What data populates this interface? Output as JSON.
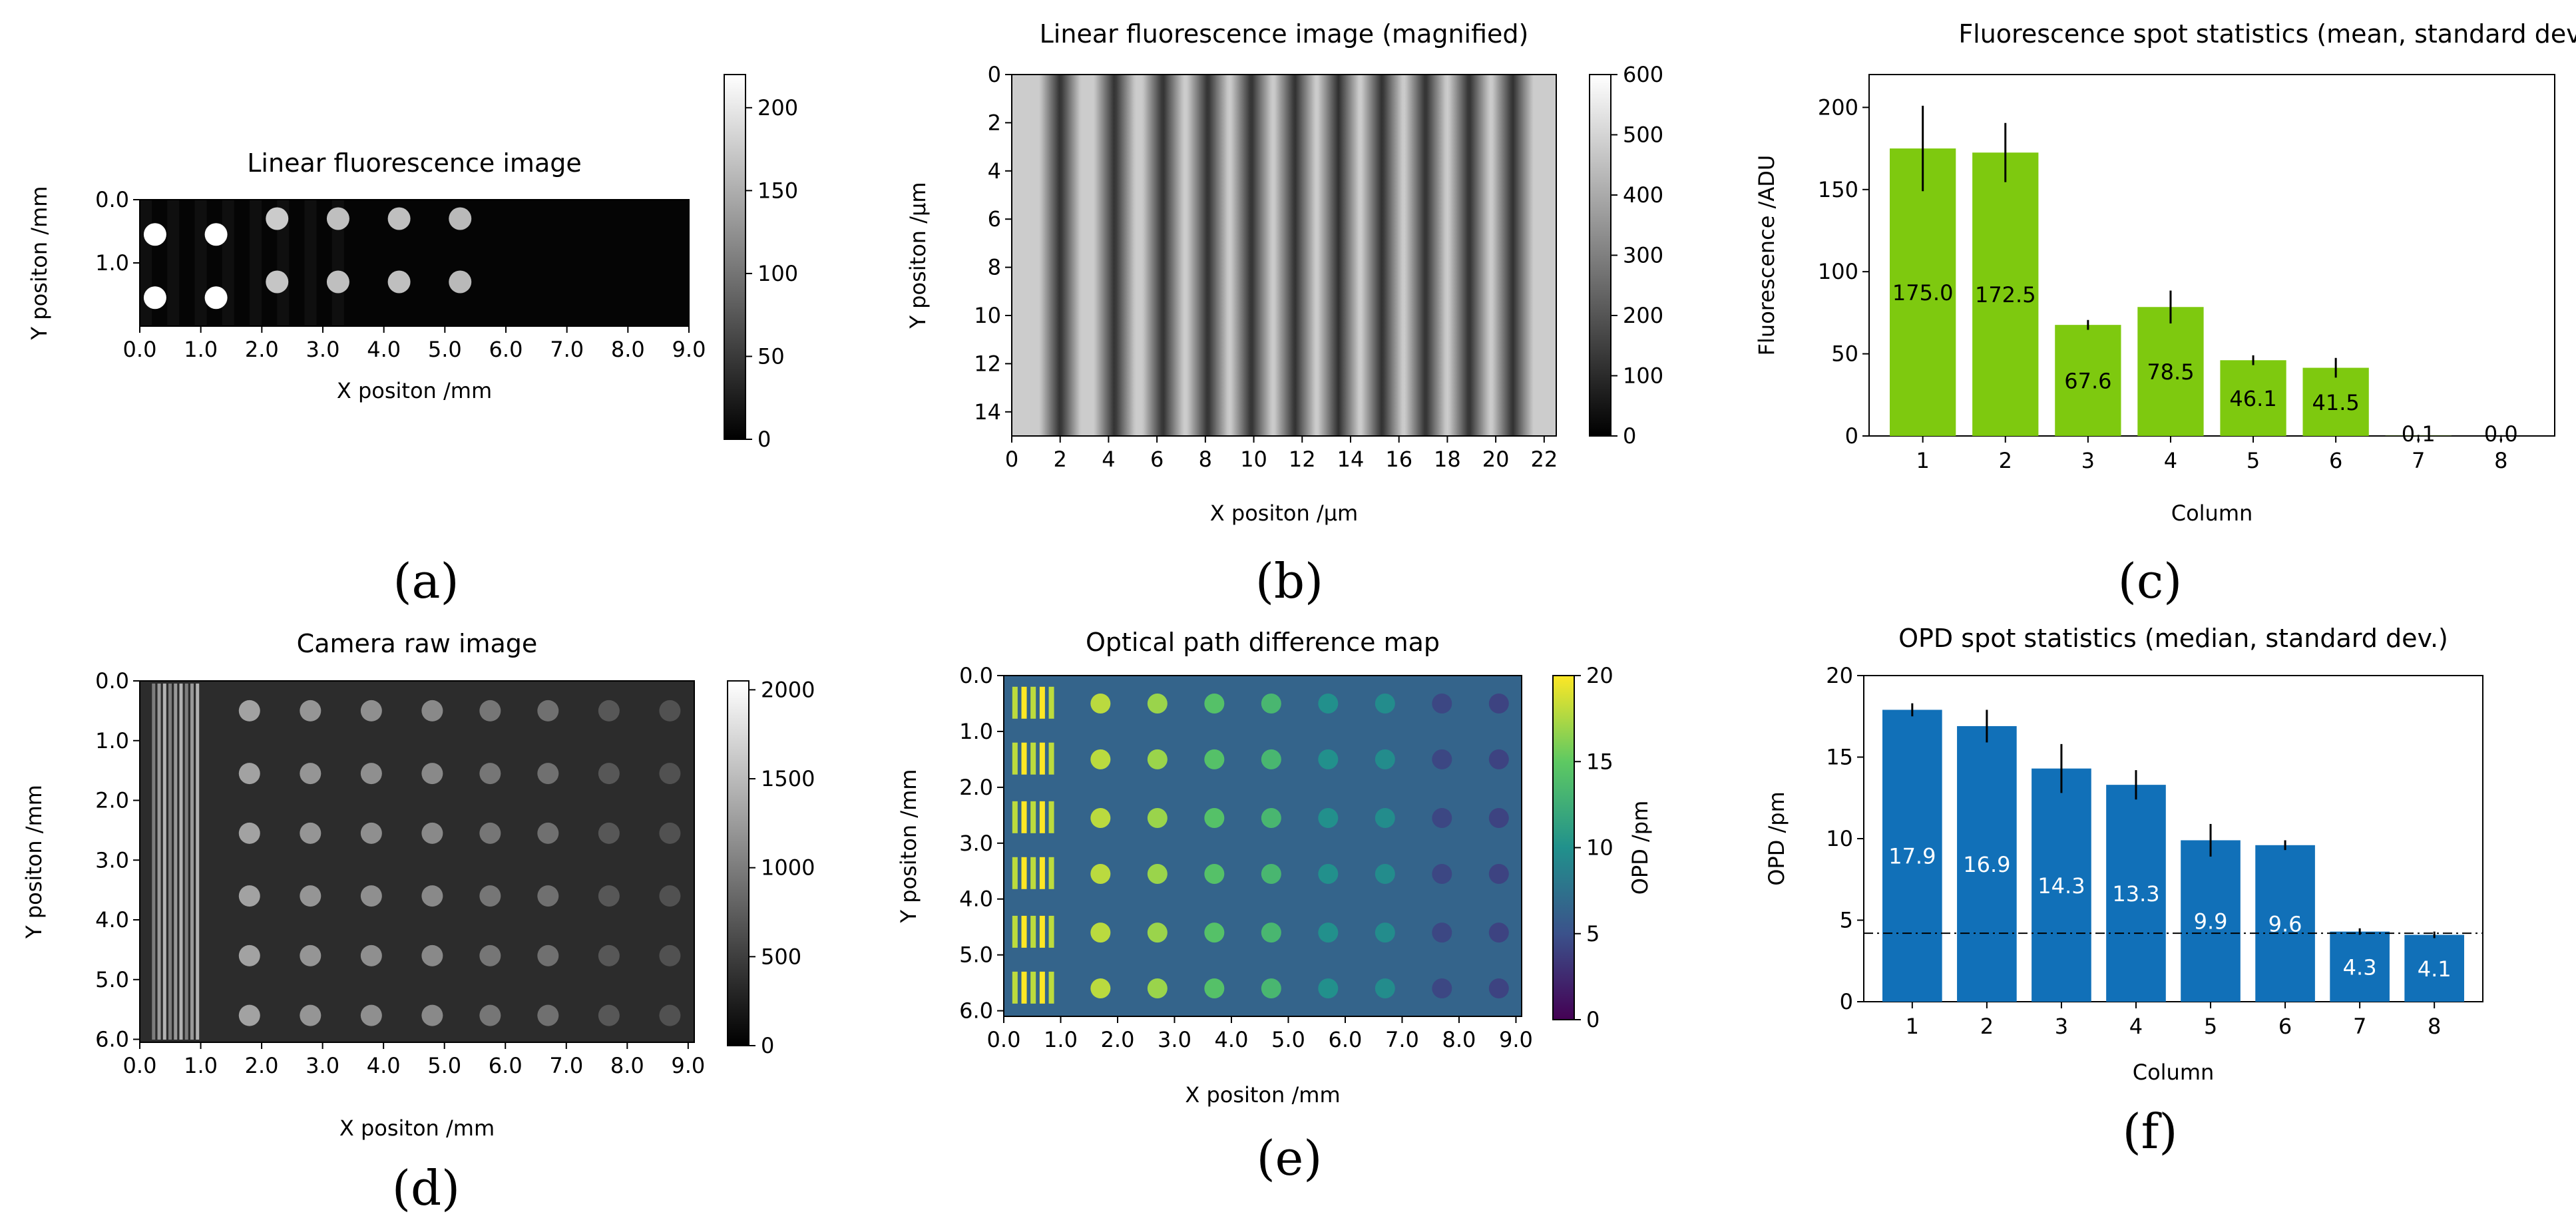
{
  "figure": {
    "panel_labels": [
      "(a)",
      "(b)",
      "(c)",
      "(d)",
      "(e)",
      "(f)"
    ]
  },
  "colors": {
    "fluorescence_bar": "#7ec90f",
    "opd_bar": "#1170b8",
    "bar_label_dark": "#000000",
    "bar_label_light": "#ffffff"
  },
  "chart_data": [
    {
      "id": "a",
      "type": "heatmap",
      "title": "Linear fluorescence image",
      "xlabel": "X positon /mm",
      "ylabel": "Y positon /mm",
      "xticks": [
        "0.0",
        "1.0",
        "2.0",
        "3.0",
        "4.0",
        "5.0",
        "6.0",
        "7.0",
        "8.0",
        "9.0"
      ],
      "yticks": [
        "0.0",
        "1.0"
      ],
      "xlim": [
        0,
        9
      ],
      "ylim": [
        0,
        2
      ],
      "colormap": "gray",
      "colorbar": {
        "ticks": [
          "0",
          "50",
          "100",
          "150",
          "200"
        ],
        "range": [
          0,
          220
        ]
      },
      "spots": [
        {
          "x": 0.25,
          "y": 0.55,
          "v": 230
        },
        {
          "x": 1.25,
          "y": 0.55,
          "v": 230
        },
        {
          "x": 2.25,
          "y": 0.3,
          "v": 175
        },
        {
          "x": 3.25,
          "y": 0.3,
          "v": 165
        },
        {
          "x": 4.25,
          "y": 0.3,
          "v": 165
        },
        {
          "x": 5.25,
          "y": 0.3,
          "v": 160
        },
        {
          "x": 0.25,
          "y": 1.55,
          "v": 230
        },
        {
          "x": 1.25,
          "y": 1.55,
          "v": 230
        },
        {
          "x": 2.25,
          "y": 1.3,
          "v": 170
        },
        {
          "x": 3.25,
          "y": 1.3,
          "v": 165
        },
        {
          "x": 4.25,
          "y": 1.3,
          "v": 165
        },
        {
          "x": 5.25,
          "y": 1.3,
          "v": 160
        }
      ]
    },
    {
      "id": "b",
      "type": "heatmap",
      "title": "Linear fluorescence image (magnified)",
      "xlabel": "X positon /µm",
      "ylabel": "Y positon /µm",
      "xticks": [
        "0",
        "2",
        "4",
        "6",
        "8",
        "10",
        "12",
        "14",
        "16",
        "18",
        "20",
        "22"
      ],
      "yticks": [
        "0",
        "2",
        "4",
        "6",
        "8",
        "10",
        "12",
        "14"
      ],
      "xlim": [
        0,
        22.5
      ],
      "ylim": [
        0,
        15
      ],
      "colormap": "gray",
      "colorbar": {
        "ticks": [
          "0",
          "100",
          "200",
          "300",
          "400",
          "500",
          "600"
        ],
        "range": [
          0,
          600
        ]
      },
      "stripe_dark_x": [
        2,
        4.25,
        6.25,
        8.1,
        9.9,
        11.7,
        13.5,
        15.3,
        17.1,
        18.9,
        20.7
      ]
    },
    {
      "id": "c",
      "type": "bar",
      "title": "Fluorescence spot statistics (mean, standard dev.)",
      "xlabel": "Column",
      "ylabel": "Fluorescence /ADU",
      "categories": [
        "1",
        "2",
        "3",
        "4",
        "5",
        "6",
        "7",
        "8"
      ],
      "values": [
        175.0,
        172.5,
        67.6,
        78.5,
        46.1,
        41.5,
        0.1,
        0.0
      ],
      "errors": [
        26,
        18,
        3,
        10,
        3,
        6,
        0.5,
        0.5
      ],
      "labels": [
        "175.0",
        "172.5",
        "67.6",
        "78.5",
        "46.1",
        "41.5",
        "0.1",
        "0.0"
      ],
      "yticks": [
        "0",
        "50",
        "100",
        "150",
        "200"
      ],
      "ylim": [
        0,
        220
      ]
    },
    {
      "id": "d",
      "type": "heatmap",
      "title": "Camera raw image",
      "xlabel": "X positon /mm",
      "ylabel": "Y positon /mm",
      "xticks": [
        "0.0",
        "1.0",
        "2.0",
        "3.0",
        "4.0",
        "5.0",
        "6.0",
        "7.0",
        "8.0",
        "9.0"
      ],
      "yticks": [
        "0.0",
        "1.0",
        "2.0",
        "3.0",
        "4.0",
        "5.0",
        "6.0"
      ],
      "xlim": [
        0,
        9.1
      ],
      "ylim": [
        0,
        6.05
      ],
      "colormap": "gray",
      "colorbar": {
        "ticks": [
          "0",
          "500",
          "1000",
          "1500",
          "2000"
        ],
        "range": [
          0,
          2050
        ]
      },
      "spot_columns_x": [
        1.8,
        2.8,
        3.8,
        4.8,
        5.75,
        6.7,
        7.7,
        8.7
      ],
      "spot_rows_y": [
        0.5,
        1.55,
        2.55,
        3.6,
        4.6,
        5.6
      ],
      "column_intensity": [
        1300,
        1200,
        1150,
        1100,
        950,
        900,
        700,
        650
      ]
    },
    {
      "id": "e",
      "type": "heatmap",
      "title": "Optical path difference map",
      "xlabel": "X positon /mm",
      "ylabel": "Y positon /mm",
      "xticks": [
        "0.0",
        "1.0",
        "2.0",
        "3.0",
        "4.0",
        "5.0",
        "6.0",
        "7.0",
        "8.0",
        "9.0"
      ],
      "yticks": [
        "0.0",
        "1.0",
        "2.0",
        "3.0",
        "4.0",
        "5.0",
        "6.0"
      ],
      "xlim": [
        0,
        9.1
      ],
      "ylim": [
        0,
        6.1
      ],
      "colormap": "viridis",
      "colorbar": {
        "ticks": [
          "0",
          "5",
          "10",
          "15",
          "20"
        ],
        "range": [
          0,
          20
        ],
        "label": "OPD /pm"
      },
      "spot_columns_x": [
        1.7,
        2.7,
        3.7,
        4.7,
        5.7,
        6.7,
        7.7,
        8.7
      ],
      "spot_rows_y": [
        0.5,
        1.5,
        2.55,
        3.55,
        4.6,
        5.6
      ],
      "column_opd": [
        17.9,
        16.9,
        14.3,
        13.3,
        9.9,
        9.6,
        4.3,
        4.1
      ]
    },
    {
      "id": "f",
      "type": "bar",
      "title": "OPD spot statistics (median, standard dev.)",
      "xlabel": "Column",
      "ylabel": "OPD /pm",
      "categories": [
        "1",
        "2",
        "3",
        "4",
        "5",
        "6",
        "7",
        "8"
      ],
      "values": [
        17.9,
        16.9,
        14.3,
        13.3,
        9.9,
        9.6,
        4.3,
        4.1
      ],
      "errors": [
        0.4,
        1.0,
        1.5,
        0.9,
        1.0,
        0.3,
        0.2,
        0.2
      ],
      "labels": [
        "17.9",
        "16.9",
        "14.3",
        "13.3",
        "9.9",
        "9.6",
        "4.3",
        "4.1"
      ],
      "yticks": [
        "0",
        "5",
        "10",
        "15",
        "20"
      ],
      "ylim": [
        0,
        20
      ],
      "reference_line": 4.2
    }
  ]
}
